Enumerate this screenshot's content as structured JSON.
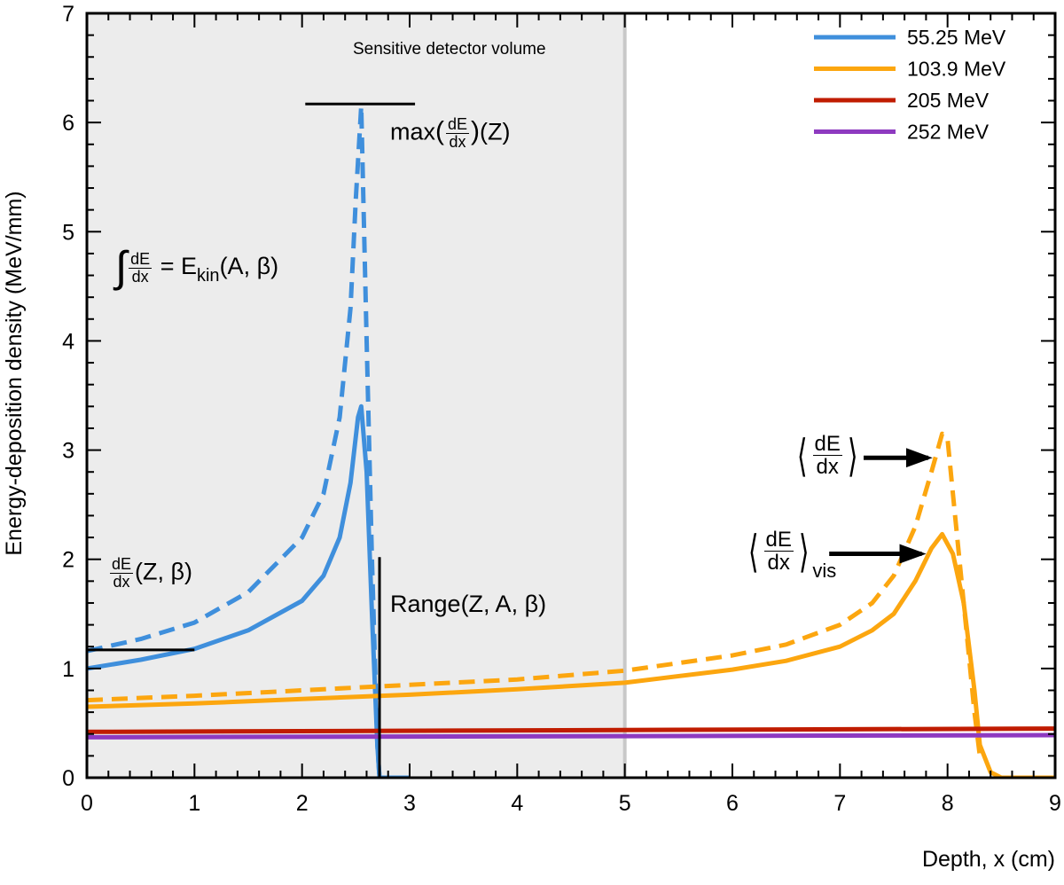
{
  "chart_data": {
    "type": "line",
    "xlabel": "Depth, x (cm)",
    "ylabel": "Energy-deposition density (MeV/mm)",
    "xlim": [
      0,
      9
    ],
    "ylim": [
      0,
      7
    ],
    "xticks": [
      "0",
      "1",
      "2",
      "3",
      "4",
      "5",
      "6",
      "7",
      "8",
      "9"
    ],
    "yticks": [
      "0",
      "1",
      "2",
      "3",
      "4",
      "5",
      "6",
      "7"
    ],
    "grid": false,
    "legend_position": "top-right",
    "shaded_region": {
      "x": [
        0,
        5
      ],
      "label": "Sensitive detector volume",
      "color": "#ececec",
      "boundary_color": "#c8c8c8"
    },
    "series": [
      {
        "name": "55.25 MeV",
        "color": "#3f8fdc",
        "style": "solid",
        "x": [
          0,
          0.5,
          1,
          1.5,
          2,
          2.2,
          2.35,
          2.45,
          2.52,
          2.55,
          2.6,
          2.65,
          2.7,
          2.72,
          3
        ],
        "y": [
          1.0,
          1.08,
          1.18,
          1.35,
          1.62,
          1.85,
          2.2,
          2.7,
          3.3,
          3.4,
          2.8,
          1.5,
          0.3,
          0,
          0
        ]
      },
      {
        "color": "#3f8fdc",
        "style": "dashed",
        "x": [
          0,
          0.5,
          1,
          1.5,
          2,
          2.2,
          2.35,
          2.45,
          2.5,
          2.55,
          2.6,
          2.65,
          2.7,
          2.72
        ],
        "y": [
          1.16,
          1.27,
          1.42,
          1.7,
          2.2,
          2.6,
          3.3,
          4.3,
          5.3,
          6.15,
          4.0,
          2.0,
          0.3,
          0
        ]
      },
      {
        "name": "103.9 MeV",
        "color": "#fca60f",
        "style": "solid",
        "x": [
          0,
          1,
          2,
          3,
          4,
          5,
          6,
          6.5,
          7,
          7.3,
          7.5,
          7.7,
          7.85,
          7.95,
          8.05,
          8.15,
          8.25,
          8.3,
          8.4,
          8.5,
          9
        ],
        "y": [
          0.65,
          0.68,
          0.72,
          0.76,
          0.81,
          0.87,
          0.99,
          1.07,
          1.2,
          1.35,
          1.5,
          1.8,
          2.1,
          2.23,
          2.05,
          1.6,
          0.8,
          0.3,
          0.05,
          0,
          0
        ]
      },
      {
        "color": "#fca60f",
        "style": "dashed",
        "x": [
          0,
          1,
          2,
          3,
          4,
          5,
          6,
          6.5,
          7,
          7.3,
          7.5,
          7.7,
          7.85,
          7.95,
          8.0,
          8.05,
          8.15,
          8.25,
          8.3
        ],
        "y": [
          0.71,
          0.75,
          0.8,
          0.85,
          0.9,
          0.98,
          1.12,
          1.22,
          1.4,
          1.6,
          1.85,
          2.3,
          2.8,
          3.15,
          3.1,
          2.6,
          1.6,
          0.6,
          0.2
        ]
      },
      {
        "name": "205 MeV",
        "color": "#c01c00",
        "style": "solid",
        "x": [
          0,
          9
        ],
        "y": [
          0.42,
          0.45
        ]
      },
      {
        "name": "252 MeV",
        "color": "#8e3ac0",
        "style": "solid",
        "x": [
          0,
          9
        ],
        "y": [
          0.37,
          0.39
        ]
      }
    ],
    "annotation_lines": [
      {
        "x": [
          2.03,
          3.05
        ],
        "y": [
          6.17,
          6.17
        ]
      },
      {
        "x": [
          0,
          1.0
        ],
        "y": [
          1.17,
          1.17
        ]
      },
      {
        "x": [
          2.72,
          2.72
        ],
        "y": [
          0,
          2.02
        ]
      }
    ],
    "arrows": [
      {
        "x": [
          7.22,
          7.82
        ],
        "y": [
          2.93,
          2.93
        ]
      },
      {
        "x": [
          6.9,
          7.76
        ],
        "y": [
          2.05,
          2.05
        ]
      }
    ],
    "annotations": {
      "max": {
        "pre": "max",
        "num": "dE",
        "den": "dx",
        "post": "(Z)"
      },
      "integral": {
        "sym": "∫",
        "num": "dE",
        "den": "dx",
        "eq": "= E",
        "sub": "kin",
        "post": "(A, β)"
      },
      "dedx": {
        "num": "dE",
        "den": "dx",
        "post": "(Z, β)"
      },
      "range": {
        "text": "Range(Z, A, β)"
      },
      "mean": {
        "num": "dE",
        "den": "dx"
      },
      "mean_vis": {
        "num": "dE",
        "den": "dx",
        "sub": "vis"
      }
    }
  }
}
